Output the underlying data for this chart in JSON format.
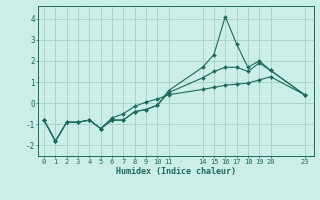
{
  "title": "",
  "xlabel": "Humidex (Indice chaleur)",
  "background_color": "#cceee8",
  "grid_color": "#aad4cc",
  "line_color": "#1a6b5a",
  "xlim": [
    -0.5,
    23.8
  ],
  "ylim": [
    -2.5,
    4.6
  ],
  "xticks": [
    0,
    1,
    2,
    3,
    4,
    5,
    6,
    7,
    8,
    9,
    10,
    11,
    14,
    15,
    16,
    17,
    18,
    19,
    20,
    23
  ],
  "yticks": [
    -2,
    -1,
    0,
    1,
    2,
    3,
    4
  ],
  "series": [
    {
      "x": [
        0,
        1,
        2,
        3,
        4,
        5,
        6,
        7,
        8,
        9,
        10,
        11,
        14,
        15,
        16,
        17,
        18,
        19,
        20,
        23
      ],
      "y": [
        -0.8,
        -1.8,
        -0.9,
        -0.9,
        -0.8,
        -1.2,
        -0.8,
        -0.8,
        -0.4,
        -0.3,
        -0.1,
        0.6,
        1.7,
        2.3,
        4.1,
        2.8,
        1.7,
        2.0,
        1.55,
        0.4
      ]
    },
    {
      "x": [
        0,
        1,
        2,
        3,
        4,
        5,
        6,
        7,
        8,
        9,
        10,
        11,
        14,
        15,
        16,
        17,
        18,
        19,
        20,
        23
      ],
      "y": [
        -0.8,
        -1.8,
        -0.9,
        -0.9,
        -0.8,
        -1.2,
        -0.8,
        -0.8,
        -0.4,
        -0.3,
        -0.1,
        0.5,
        1.2,
        1.5,
        1.7,
        1.7,
        1.5,
        1.9,
        1.55,
        0.4
      ]
    },
    {
      "x": [
        0,
        1,
        2,
        3,
        4,
        5,
        6,
        7,
        8,
        9,
        10,
        11,
        14,
        15,
        16,
        17,
        18,
        19,
        20,
        23
      ],
      "y": [
        -0.8,
        -1.8,
        -0.9,
        -0.9,
        -0.8,
        -1.2,
        -0.7,
        -0.5,
        -0.15,
        0.05,
        0.2,
        0.4,
        0.65,
        0.75,
        0.85,
        0.9,
        0.95,
        1.1,
        1.25,
        0.4
      ]
    }
  ]
}
